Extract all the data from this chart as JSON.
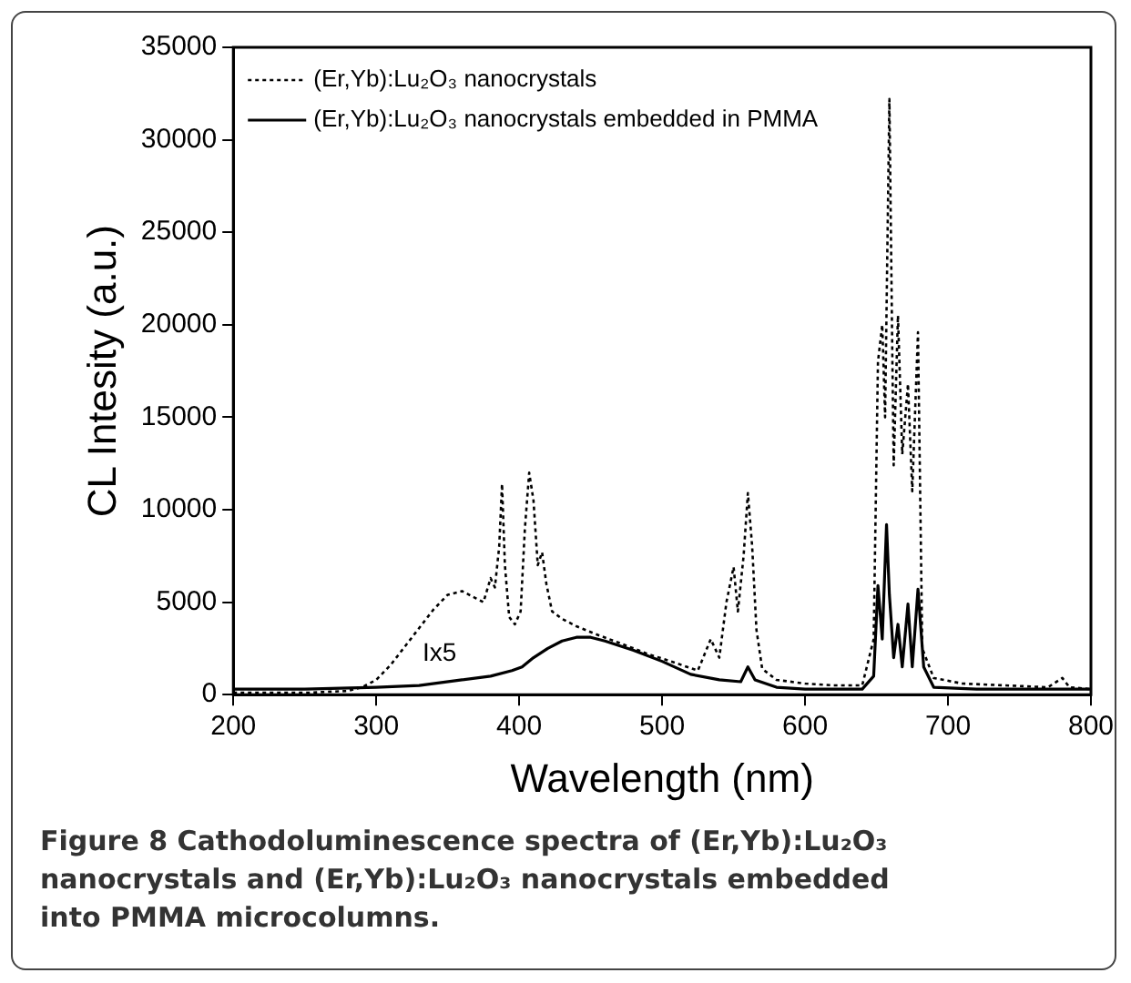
{
  "chart_data": {
    "type": "line",
    "xlabel": "Wavelength (nm)",
    "ylabel": "CL Intesity (a.u.)",
    "xlim": [
      200,
      800
    ],
    "xticks": [
      200,
      300,
      400,
      500,
      600,
      700,
      800
    ],
    "ylim": [
      0,
      35000
    ],
    "yticks": [
      0,
      5000,
      10000,
      15000,
      20000,
      25000,
      30000,
      35000
    ],
    "grid": false,
    "legend": "top left",
    "marker": "none",
    "series": [
      {
        "name": "(Er,Yb):Lu₂O₃ nanocrystals",
        "color": "#000000",
        "line_style": "dotted",
        "x": [
          200,
          250,
          280,
          290,
          300,
          310,
          320,
          330,
          340,
          350,
          360,
          370,
          375,
          380,
          383,
          386,
          388,
          390,
          393,
          397,
          401,
          404,
          407,
          410,
          413,
          416,
          419,
          423,
          430,
          440,
          456,
          470,
          490,
          510,
          525,
          534,
          540,
          545,
          550,
          553,
          557,
          560,
          563,
          566,
          570,
          580,
          600,
          620,
          640,
          648,
          651,
          654,
          656,
          659,
          661,
          662,
          665,
          668,
          672,
          675,
          679,
          682,
          690,
          710,
          740,
          770,
          780,
          785,
          800
        ],
        "values": [
          100,
          100,
          200,
          400,
          800,
          1600,
          2600,
          3600,
          4600,
          5400,
          5600,
          5200,
          5000,
          6300,
          5800,
          8000,
          11400,
          7000,
          4200,
          3800,
          4500,
          9000,
          12000,
          10500,
          7000,
          7700,
          6000,
          4500,
          4100,
          3700,
          3200,
          2800,
          2200,
          1700,
          1300,
          3000,
          2000,
          5000,
          6900,
          4500,
          7500,
          10900,
          8000,
          3500,
          1400,
          800,
          600,
          500,
          500,
          3000,
          18000,
          20000,
          15000,
          32200,
          18700,
          12400,
          20500,
          13000,
          16800,
          11000,
          19600,
          2500,
          900,
          600,
          500,
          400,
          900,
          400,
          300
        ]
      },
      {
        "name": "(Er,Yb):Lu₂O₃ nanocrystals embedded in PMMA",
        "color": "#000000",
        "line_style": "solid",
        "x": [
          200,
          250,
          300,
          330,
          360,
          380,
          395,
          402,
          410,
          420,
          430,
          440,
          450,
          460,
          480,
          500,
          520,
          540,
          555,
          560,
          565,
          580,
          600,
          640,
          648,
          651,
          654,
          657,
          659,
          662,
          665,
          668,
          672,
          675,
          679,
          683,
          690,
          720,
          800
        ],
        "values": [
          300,
          300,
          400,
          500,
          800,
          1000,
          1300,
          1500,
          2000,
          2500,
          2900,
          3100,
          3100,
          2900,
          2400,
          1800,
          1100,
          800,
          700,
          1500,
          800,
          400,
          300,
          300,
          1000,
          5900,
          3000,
          9200,
          5400,
          2000,
          3800,
          1500,
          4900,
          1500,
          5700,
          1500,
          400,
          300,
          300
        ]
      }
    ],
    "annotations": [
      "Ix5",
      "Figure 8 Cathodoluminescence spectra of (Er,Yb):Lu₂O₃ nanocrystals and (Er,Yb):Lu₂O₃ nanocrystals embedded into PMMA microcolumns."
    ]
  }
}
